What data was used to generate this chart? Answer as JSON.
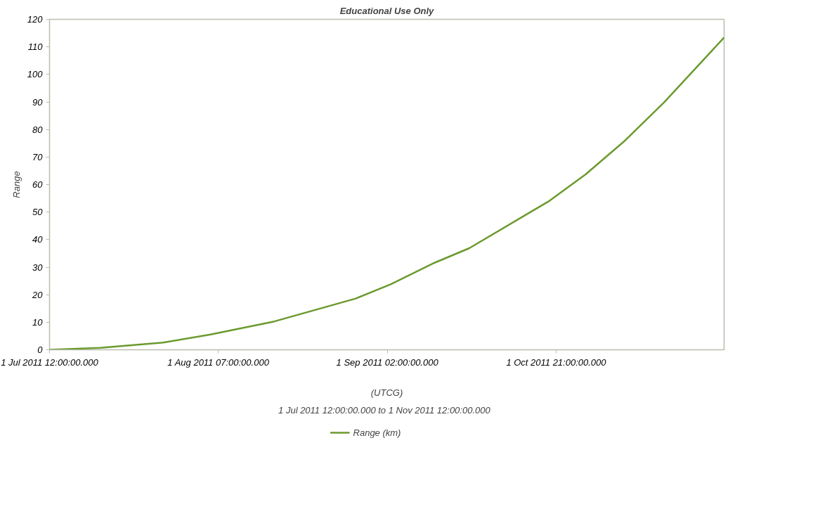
{
  "chart_data": {
    "type": "line",
    "title": "Educational Use Only",
    "xlabel": "(UTCG)",
    "ylabel": "Range",
    "annotations": [
      "1 Jul 2011 12:00:00.000  to  1 Nov 2011 12:00:00.000"
    ],
    "x": [
      "2011-07-01T12:00",
      "2011-07-10T18:00",
      "2011-07-22T05:00",
      "2011-07-30T17:00",
      "2011-08-11T12:00",
      "2011-08-26T08:00",
      "2011-09-01T17:00",
      "2011-09-09T17:00",
      "2011-09-16T01:00",
      "2011-09-30T12:00",
      "2011-10-07T06:00",
      "2011-10-14T12:00",
      "2011-10-21T14:00",
      "2011-11-01T12:00"
    ],
    "series": [
      {
        "name": "Range (km)",
        "color": "#6b9a2e",
        "values": [
          0,
          0.7,
          2.6,
          5.5,
          10.3,
          18.6,
          23.8,
          31.6,
          36.9,
          53.9,
          63.7,
          76.1,
          89.9,
          113.4
        ]
      }
    ],
    "xlim": [
      "2011-07-01T12:00",
      "2011-11-01T12:00"
    ],
    "xticks": [
      {
        "value": "2011-07-01T12:00",
        "label": "1 Jul 2011 12:00:00.000"
      },
      {
        "value": "2011-08-01T07:00",
        "label": "1 Aug 2011 07:00:00.000"
      },
      {
        "value": "2011-09-01T02:00",
        "label": "1 Sep 2011 02:00:00.000"
      },
      {
        "value": "2011-10-01T21:00",
        "label": "1 Oct 2011 21:00:00.000"
      }
    ],
    "ylim": [
      0,
      120
    ],
    "yticks": [
      0,
      10,
      20,
      30,
      40,
      50,
      60,
      70,
      80,
      90,
      100,
      110,
      120
    ],
    "grid": false,
    "legend": "bottom",
    "marker": "none",
    "line_style": "solid"
  }
}
